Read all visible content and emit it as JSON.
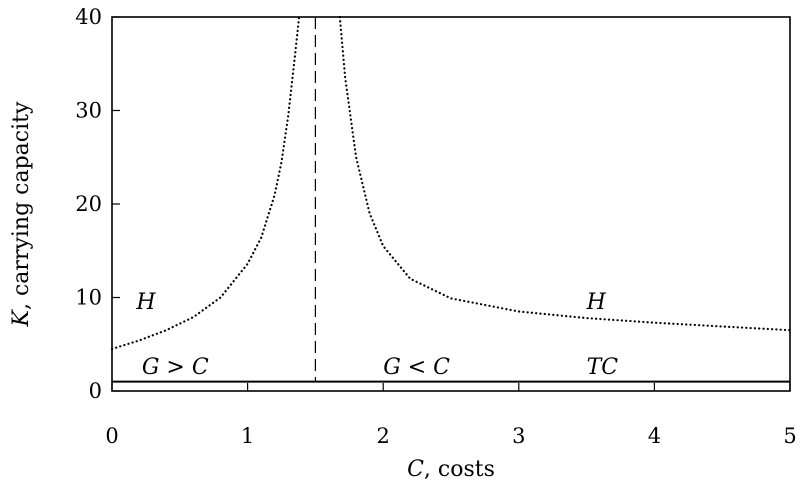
{
  "chart_data": {
    "type": "line",
    "title": "",
    "xlabel": {
      "symbol": "C",
      "text": ", costs"
    },
    "ylabel": {
      "symbol": "K",
      "text": ", carrying capacity"
    },
    "xlim": [
      0,
      5
    ],
    "ylim": [
      0,
      40
    ],
    "xticks": [
      "0",
      "1",
      "2",
      "3",
      "4",
      "5"
    ],
    "yticks": [
      "0",
      "10",
      "20",
      "30",
      "40"
    ],
    "grid": false,
    "legend": "none",
    "curve_H_left": {
      "style": "dotted",
      "x": [
        0,
        0.2,
        0.4,
        0.6,
        0.8,
        1.0,
        1.1,
        1.2,
        1.25,
        1.3,
        1.35,
        1.38
      ],
      "y": [
        4.5,
        5.4,
        6.5,
        7.9,
        10.0,
        13.6,
        16.4,
        21.0,
        24.5,
        29.5,
        36.0,
        40.0
      ]
    },
    "curve_H_right": {
      "style": "dotted",
      "x": [
        1.68,
        1.72,
        1.8,
        1.9,
        2.0,
        2.2,
        2.5,
        3.0,
        3.5,
        4.0,
        4.5,
        5.0
      ],
      "y": [
        40.0,
        33.5,
        25.0,
        19.0,
        15.5,
        12.0,
        9.9,
        8.5,
        7.8,
        7.3,
        6.9,
        6.5
      ]
    },
    "vline": {
      "x": 1.5,
      "style": "dashed"
    },
    "hline": {
      "y": 1,
      "style": "solid"
    },
    "annotations": [
      {
        "text": "H",
        "x": 0.18,
        "y": 9.6
      },
      {
        "text": "H",
        "x": 3.5,
        "y": 9.6
      },
      {
        "text": "G > C",
        "x": 0.22,
        "y": 2.7
      },
      {
        "text": "G < C",
        "x": 2.0,
        "y": 2.7
      },
      {
        "text": "TC",
        "x": 3.5,
        "y": 2.7
      }
    ]
  }
}
